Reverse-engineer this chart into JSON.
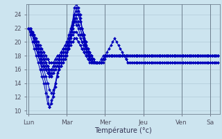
{
  "bg_color": "#cce4ef",
  "grid_color": "#aac4d4",
  "line_color": "#0000bb",
  "marker_color": "#0000bb",
  "xlabel": "Température (°c)",
  "ylim": [
    9.5,
    25.5
  ],
  "yticks": [
    10,
    12,
    14,
    16,
    18,
    20,
    22,
    24
  ],
  "day_labels": [
    "Lun",
    "Mar",
    "Mer",
    "Jeu",
    "Ven",
    "Sa"
  ],
  "day_positions": [
    0,
    20,
    40,
    60,
    80,
    95
  ],
  "total_points": 100,
  "series": [
    [
      22,
      22,
      21,
      20,
      19,
      18,
      17,
      16,
      15,
      14,
      12,
      10.5,
      11,
      12,
      13.5,
      15,
      16,
      16.5,
      17,
      17.5,
      18,
      19,
      21,
      23,
      25,
      25.5,
      25,
      24,
      22,
      21,
      19.5,
      18.5,
      17.5,
      17,
      17,
      17,
      17,
      17,
      17.5,
      18,
      18,
      18.5,
      19,
      19.5,
      20,
      20.5,
      20,
      19.5,
      19,
      18.5,
      18,
      17.5,
      17,
      17,
      17,
      17,
      17,
      17,
      17,
      17,
      17,
      17,
      17,
      17,
      17,
      17,
      17,
      17,
      17,
      17,
      17,
      17,
      17,
      17,
      17,
      17,
      17,
      17,
      17,
      17,
      17,
      17,
      17,
      17,
      17,
      17,
      17,
      17,
      17,
      17,
      17,
      17,
      17,
      17,
      17,
      17,
      17,
      17,
      17,
      17,
      17
    ],
    [
      22,
      22,
      21,
      20.5,
      20,
      19.5,
      19,
      18,
      17.5,
      17,
      16.5,
      15.5,
      15,
      15.5,
      16,
      16.5,
      17,
      17.5,
      18,
      18.5,
      19,
      20,
      21,
      22,
      23,
      23.5,
      23,
      22,
      21,
      20,
      19,
      18.5,
      18,
      17.5,
      17,
      17,
      17,
      17,
      17,
      17.5,
      18,
      18,
      18,
      18,
      18,
      18,
      18,
      18,
      18,
      18,
      18,
      17.5,
      17,
      17,
      17,
      17,
      17,
      17,
      17,
      17,
      17,
      17,
      17,
      17,
      17,
      17,
      17,
      17,
      17,
      17,
      17,
      17,
      17,
      17,
      17,
      17,
      17,
      17,
      17,
      17,
      17,
      17,
      17,
      17,
      17,
      17,
      17,
      17,
      17,
      17,
      17,
      17,
      17,
      17,
      17,
      17,
      17,
      17,
      17,
      17,
      17
    ],
    [
      22,
      22,
      21.5,
      21,
      20,
      19,
      18,
      17,
      16.5,
      16,
      15.5,
      15,
      15.5,
      16,
      16.5,
      17,
      17.5,
      18,
      18.5,
      19,
      19.5,
      20.5,
      21.5,
      22.5,
      23.5,
      23,
      22.5,
      22,
      21,
      20,
      19,
      18.5,
      18,
      17.5,
      17,
      17,
      17,
      17,
      17,
      17.5,
      18,
      18,
      18,
      18,
      18,
      18,
      18,
      18,
      18,
      18,
      18,
      18,
      18,
      18,
      18,
      18,
      18,
      18,
      18,
      18,
      18,
      18,
      18,
      18,
      18,
      18,
      18,
      18,
      18,
      18,
      18,
      18,
      18,
      18,
      18,
      18,
      18,
      18,
      18,
      18,
      18,
      18,
      18,
      18,
      18,
      18,
      18,
      18,
      18,
      18,
      18,
      18,
      18,
      18,
      18,
      18,
      18,
      18,
      18,
      18
    ],
    [
      22,
      22,
      21,
      20,
      19,
      18.5,
      18,
      17.5,
      17,
      16.5,
      16,
      15.5,
      16,
      16.5,
      17,
      17.5,
      18,
      18.5,
      19,
      19.5,
      20,
      21,
      22,
      23,
      24,
      24.5,
      24,
      23,
      22,
      21,
      20,
      19,
      18.5,
      18,
      17.5,
      17,
      17,
      17,
      17,
      17.5,
      18,
      18,
      18,
      18,
      18,
      18,
      18,
      18,
      18,
      18,
      18,
      18,
      18,
      18,
      18,
      18,
      18,
      18,
      18,
      18,
      18,
      18,
      18,
      18,
      18,
      18,
      18,
      18,
      18,
      18,
      18,
      18,
      18,
      18,
      18,
      18,
      18,
      18,
      18,
      18,
      18,
      18,
      18,
      18,
      18,
      18,
      18,
      18,
      18,
      18,
      18,
      18,
      18,
      18,
      18,
      18,
      18,
      18,
      18,
      18
    ],
    [
      22,
      22,
      21,
      20,
      19,
      18,
      17.5,
      17,
      16.5,
      16,
      15.5,
      15,
      15,
      15.5,
      16,
      16.5,
      17,
      17,
      17.5,
      18,
      18.5,
      19.5,
      21,
      22,
      23,
      22.5,
      22,
      21,
      20,
      19,
      18.5,
      18,
      17.5,
      17,
      17,
      17,
      17,
      17,
      17,
      17.5,
      18,
      18,
      18,
      18,
      18,
      18,
      18,
      18,
      18,
      18,
      18,
      18,
      18,
      18,
      18,
      18,
      18,
      18,
      18,
      18,
      18,
      18,
      18,
      18,
      18,
      18,
      18,
      18,
      18,
      18,
      18,
      18,
      18,
      18,
      18,
      18,
      18,
      18,
      18,
      18,
      18,
      18,
      18,
      18,
      18,
      18,
      18,
      18,
      18,
      18,
      18,
      18,
      18,
      18,
      18,
      18,
      18,
      18,
      18,
      18
    ],
    [
      22,
      21.5,
      21,
      20,
      19,
      18,
      17,
      16.5,
      16,
      15,
      14,
      13,
      12.5,
      13,
      14,
      15,
      16,
      16.5,
      17,
      17.5,
      18,
      19,
      20,
      21.5,
      23,
      24,
      24,
      23,
      22,
      21,
      20,
      19,
      18.5,
      18,
      17.5,
      17,
      17,
      17,
      17,
      17.5,
      18,
      18,
      18,
      18,
      18,
      18,
      18,
      18,
      18,
      18,
      18,
      18,
      18,
      18,
      18,
      18,
      18,
      18,
      18,
      18,
      18,
      18,
      18,
      18,
      18,
      18,
      18,
      18,
      18,
      18,
      18,
      18,
      18,
      18,
      18,
      18,
      18,
      18,
      18,
      18,
      18,
      18,
      18,
      18,
      18,
      18,
      18,
      18,
      18,
      18,
      18,
      18,
      18,
      18,
      18,
      18,
      18,
      18,
      18,
      18
    ],
    [
      22,
      21,
      20,
      19,
      18,
      17,
      16,
      15,
      14,
      12.5,
      11,
      10.5,
      11.5,
      12.5,
      14,
      15.5,
      16.5,
      17,
      17.5,
      18,
      18.5,
      19.5,
      21,
      22.5,
      24,
      25,
      24.5,
      23.5,
      22,
      20.5,
      19,
      18,
      17.5,
      17,
      17,
      17,
      17,
      17,
      17,
      17.5,
      18,
      18,
      18,
      18,
      18,
      18,
      18,
      18,
      18,
      18,
      18,
      18,
      18,
      18,
      18,
      18,
      18,
      18,
      18,
      18,
      18,
      18,
      18,
      18,
      18,
      18,
      18,
      18,
      18,
      18,
      18,
      18,
      18,
      18,
      18,
      18,
      18,
      18,
      18,
      18,
      18,
      18,
      18,
      18,
      18,
      18,
      18,
      18,
      18,
      18,
      18,
      18,
      18,
      18,
      18,
      18,
      18,
      18,
      18,
      18
    ],
    [
      22,
      22,
      21,
      20,
      19.5,
      19,
      18.5,
      18,
      17.5,
      17,
      16.5,
      16,
      16,
      16.5,
      17,
      17,
      17.5,
      18,
      18.5,
      19,
      19.5,
      20,
      20.5,
      21,
      21.5,
      21.5,
      21,
      20.5,
      20,
      19.5,
      19,
      18.5,
      18,
      17.5,
      17,
      17,
      17,
      17,
      17,
      17,
      17.5,
      18,
      18,
      18,
      18,
      18,
      18,
      18,
      18,
      18,
      18,
      18,
      18,
      18,
      18,
      18,
      18,
      18,
      18,
      18,
      18,
      18,
      18,
      18,
      18,
      18,
      18,
      18,
      18,
      18,
      18,
      18,
      18,
      18,
      18,
      18,
      18,
      18,
      18,
      18,
      18,
      18,
      18,
      18,
      18,
      18,
      18,
      18,
      18,
      18,
      18,
      18,
      18,
      18,
      18,
      18,
      18,
      18,
      18,
      18
    ],
    [
      22,
      22,
      21.5,
      21,
      20.5,
      20,
      19.5,
      19,
      18.5,
      18,
      17.5,
      17,
      17,
      17,
      17.5,
      18,
      18,
      18.5,
      19,
      19.5,
      20,
      20,
      20,
      20,
      20.5,
      20.5,
      20,
      19.5,
      19,
      18.5,
      18,
      17.5,
      17.5,
      17.5,
      17,
      17,
      17,
      17,
      17,
      17.5,
      18,
      18,
      18,
      18,
      18,
      18,
      18,
      18,
      18,
      18,
      18,
      18,
      18,
      18,
      18,
      18,
      18,
      18,
      18,
      18,
      18,
      18,
      18,
      18,
      18,
      18,
      18,
      18,
      18,
      18,
      18,
      18,
      18,
      18,
      18,
      18,
      18,
      18,
      18,
      18,
      18,
      18,
      18,
      18,
      18,
      18,
      18,
      18,
      18,
      18,
      18,
      18,
      18,
      18,
      18,
      18,
      18,
      18,
      18,
      18
    ],
    [
      22,
      22,
      21,
      20.5,
      20,
      19.5,
      19,
      18.5,
      18,
      17.5,
      17.5,
      17,
      17,
      17,
      17.5,
      18,
      18,
      18,
      18.5,
      19,
      19,
      19,
      19.5,
      20,
      20.5,
      20.5,
      20,
      19.5,
      19,
      18.5,
      18,
      17.5,
      17,
      17,
      17,
      17,
      17,
      17,
      17,
      17.5,
      18,
      18,
      18,
      18,
      18,
      18,
      18,
      18,
      18,
      18,
      18,
      18,
      18,
      18,
      18,
      18,
      18,
      18,
      18,
      18,
      18,
      18,
      18,
      18,
      18,
      18,
      18,
      18,
      18,
      18,
      18,
      18,
      18,
      18,
      18,
      18,
      18,
      18,
      18,
      18,
      18,
      18,
      18,
      18,
      18,
      18,
      18,
      18,
      18,
      18,
      18,
      18,
      18,
      18,
      18,
      18,
      18,
      18,
      18,
      18
    ]
  ]
}
